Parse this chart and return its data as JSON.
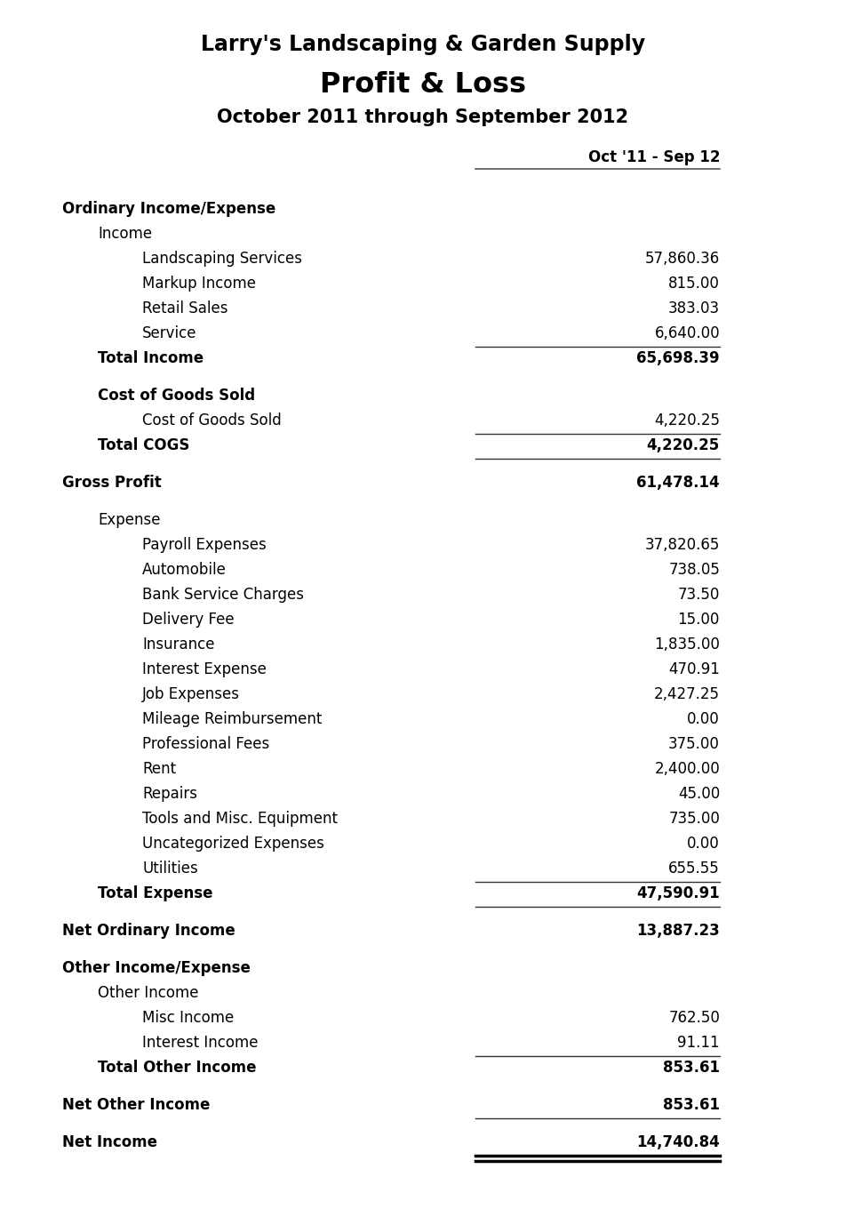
{
  "title1": "Larry's Landscaping & Garden Supply",
  "title2": "Profit & Loss",
  "title3": "October 2011 through September 2012",
  "col_header": "Oct '11 - Sep 12",
  "background_color": "#ffffff",
  "rows": [
    {
      "label": "Ordinary Income/Expense",
      "value": null,
      "indent": 0,
      "bold": true,
      "underline_after": false,
      "spacer_before": true,
      "spacer_after": false
    },
    {
      "label": "Income",
      "value": null,
      "indent": 1,
      "bold": false,
      "underline_after": false,
      "spacer_before": false,
      "spacer_after": false
    },
    {
      "label": "Landscaping Services",
      "value": "57,860.36",
      "indent": 2,
      "bold": false,
      "underline_after": false,
      "spacer_before": false,
      "spacer_after": false
    },
    {
      "label": "Markup Income",
      "value": "815.00",
      "indent": 2,
      "bold": false,
      "underline_after": false,
      "spacer_before": false,
      "spacer_after": false
    },
    {
      "label": "Retail Sales",
      "value": "383.03",
      "indent": 2,
      "bold": false,
      "underline_after": false,
      "spacer_before": false,
      "spacer_after": false
    },
    {
      "label": "Service",
      "value": "6,640.00",
      "indent": 2,
      "bold": false,
      "underline_after": true,
      "spacer_before": false,
      "spacer_after": false
    },
    {
      "label": "Total Income",
      "value": "65,698.39",
      "indent": 1,
      "bold": true,
      "underline_after": false,
      "spacer_before": false,
      "spacer_after": true
    },
    {
      "label": "Cost of Goods Sold",
      "value": null,
      "indent": 1,
      "bold": true,
      "underline_after": false,
      "spacer_before": false,
      "spacer_after": false
    },
    {
      "label": "Cost of Goods Sold",
      "value": "4,220.25",
      "indent": 2,
      "bold": false,
      "underline_after": true,
      "spacer_before": false,
      "spacer_after": false
    },
    {
      "label": "Total COGS",
      "value": "4,220.25",
      "indent": 1,
      "bold": true,
      "underline_after": true,
      "spacer_before": false,
      "spacer_after": true
    },
    {
      "label": "Gross Profit",
      "value": "61,478.14",
      "indent": 0,
      "bold": true,
      "underline_after": false,
      "spacer_before": false,
      "spacer_after": true
    },
    {
      "label": "Expense",
      "value": null,
      "indent": 1,
      "bold": false,
      "underline_after": false,
      "spacer_before": false,
      "spacer_after": false
    },
    {
      "label": "Payroll Expenses",
      "value": "37,820.65",
      "indent": 2,
      "bold": false,
      "underline_after": false,
      "spacer_before": false,
      "spacer_after": false
    },
    {
      "label": "Automobile",
      "value": "738.05",
      "indent": 2,
      "bold": false,
      "underline_after": false,
      "spacer_before": false,
      "spacer_after": false
    },
    {
      "label": "Bank Service Charges",
      "value": "73.50",
      "indent": 2,
      "bold": false,
      "underline_after": false,
      "spacer_before": false,
      "spacer_after": false
    },
    {
      "label": "Delivery Fee",
      "value": "15.00",
      "indent": 2,
      "bold": false,
      "underline_after": false,
      "spacer_before": false,
      "spacer_after": false
    },
    {
      "label": "Insurance",
      "value": "1,835.00",
      "indent": 2,
      "bold": false,
      "underline_after": false,
      "spacer_before": false,
      "spacer_after": false
    },
    {
      "label": "Interest Expense",
      "value": "470.91",
      "indent": 2,
      "bold": false,
      "underline_after": false,
      "spacer_before": false,
      "spacer_after": false
    },
    {
      "label": "Job Expenses",
      "value": "2,427.25",
      "indent": 2,
      "bold": false,
      "underline_after": false,
      "spacer_before": false,
      "spacer_after": false
    },
    {
      "label": "Mileage Reimbursement",
      "value": "0.00",
      "indent": 2,
      "bold": false,
      "underline_after": false,
      "spacer_before": false,
      "spacer_after": false
    },
    {
      "label": "Professional Fees",
      "value": "375.00",
      "indent": 2,
      "bold": false,
      "underline_after": false,
      "spacer_before": false,
      "spacer_after": false
    },
    {
      "label": "Rent",
      "value": "2,400.00",
      "indent": 2,
      "bold": false,
      "underline_after": false,
      "spacer_before": false,
      "spacer_after": false
    },
    {
      "label": "Repairs",
      "value": "45.00",
      "indent": 2,
      "bold": false,
      "underline_after": false,
      "spacer_before": false,
      "spacer_after": false
    },
    {
      "label": "Tools and Misc. Equipment",
      "value": "735.00",
      "indent": 2,
      "bold": false,
      "underline_after": false,
      "spacer_before": false,
      "spacer_after": false
    },
    {
      "label": "Uncategorized Expenses",
      "value": "0.00",
      "indent": 2,
      "bold": false,
      "underline_after": false,
      "spacer_before": false,
      "spacer_after": false
    },
    {
      "label": "Utilities",
      "value": "655.55",
      "indent": 2,
      "bold": false,
      "underline_after": true,
      "spacer_before": false,
      "spacer_after": false
    },
    {
      "label": "Total Expense",
      "value": "47,590.91",
      "indent": 1,
      "bold": true,
      "underline_after": true,
      "spacer_before": false,
      "spacer_after": true
    },
    {
      "label": "Net Ordinary Income",
      "value": "13,887.23",
      "indent": 0,
      "bold": true,
      "underline_after": false,
      "spacer_before": false,
      "spacer_after": true
    },
    {
      "label": "Other Income/Expense",
      "value": null,
      "indent": 0,
      "bold": true,
      "underline_after": false,
      "spacer_before": false,
      "spacer_after": false
    },
    {
      "label": "Other Income",
      "value": null,
      "indent": 1,
      "bold": false,
      "underline_after": false,
      "spacer_before": false,
      "spacer_after": false
    },
    {
      "label": "Misc Income",
      "value": "762.50",
      "indent": 2,
      "bold": false,
      "underline_after": false,
      "spacer_before": false,
      "spacer_after": false
    },
    {
      "label": "Interest Income",
      "value": "91.11",
      "indent": 2,
      "bold": false,
      "underline_after": true,
      "spacer_before": false,
      "spacer_after": false
    },
    {
      "label": "Total Other Income",
      "value": "853.61",
      "indent": 1,
      "bold": true,
      "underline_after": false,
      "spacer_before": false,
      "spacer_after": true
    },
    {
      "label": "Net Other Income",
      "value": "853.61",
      "indent": 0,
      "bold": true,
      "underline_after": true,
      "spacer_before": false,
      "spacer_after": true
    },
    {
      "label": "Net Income",
      "value": "14,740.84",
      "indent": 0,
      "bold": true,
      "underline_after": false,
      "spacer_before": false,
      "spacer_after": false,
      "double_underline": true
    }
  ]
}
